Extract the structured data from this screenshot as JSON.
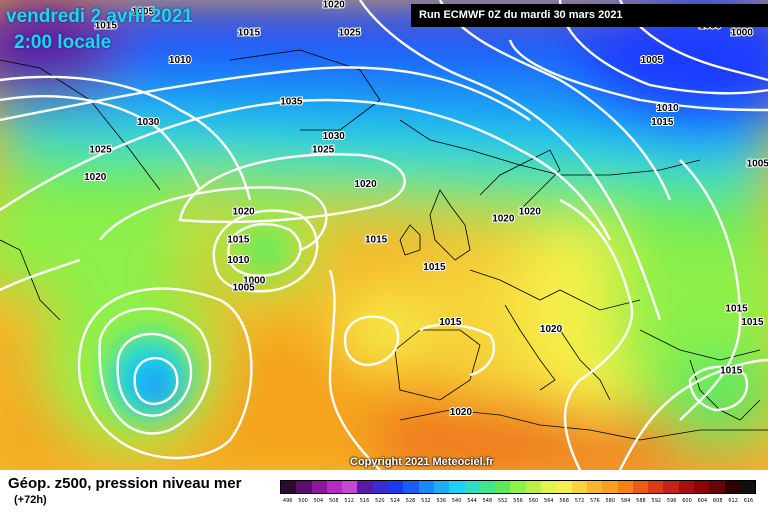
{
  "header": {
    "date": "vendredi 2 avril 2021",
    "local_time": "2:00 locale",
    "run": "Run ECMWF 0Z du mardi 30 mars 2021"
  },
  "copyright": "Copyright 2021 Meteociel.fr",
  "footer": {
    "title": "Géop. z500, pression niveau mer",
    "lead_time": "(+72h)"
  },
  "colors": {
    "deep_low": "#3a0ca3",
    "blue": "#1e3cff",
    "cyan": "#19d3f0",
    "green": "#5ee85e",
    "yellow": "#f6f04a",
    "orange": "#f5a31a",
    "isobar": "#ffffff",
    "coastline": "#000000"
  },
  "scale": {
    "labels": [
      "496",
      "500",
      "504",
      "508",
      "512",
      "516",
      "520",
      "524",
      "528",
      "532",
      "536",
      "540",
      "544",
      "548",
      "552",
      "556",
      "560",
      "564",
      "568",
      "572",
      "576",
      "580",
      "584",
      "588",
      "592",
      "596",
      "600",
      "604",
      "608",
      "612",
      "616"
    ],
    "colors": [
      "#2a0a2e",
      "#5a0f6a",
      "#8a1a9a",
      "#b52ac0",
      "#c04ad0",
      "#5a1aa8",
      "#3a2ad8",
      "#1a3af0",
      "#1a5cf6",
      "#1a88f6",
      "#1ab0f0",
      "#19d3f0",
      "#2ae0c0",
      "#3ae890",
      "#5ee85e",
      "#8ef04a",
      "#b8f048",
      "#e0f44a",
      "#f6f04a",
      "#f6d43a",
      "#f5b82a",
      "#f5a31a",
      "#f4821a",
      "#ee5a1a",
      "#e0381a",
      "#c8201a",
      "#a81010",
      "#880808",
      "#680404",
      "#300000",
      "#101010"
    ]
  },
  "pressure_labels": [
    {
      "text": "1000",
      "lon": -48,
      "lat": 69
    },
    {
      "text": "1005",
      "lon": -44,
      "lat": 66
    },
    {
      "text": "1015",
      "lon": -51,
      "lat": 64
    },
    {
      "text": "1010",
      "lon": -37,
      "lat": 59
    },
    {
      "text": "1015",
      "lon": -24,
      "lat": 63
    },
    {
      "text": "1020",
      "lon": -6,
      "lat": 71
    },
    {
      "text": "1020",
      "lon": -8,
      "lat": 67
    },
    {
      "text": "1025",
      "lon": -5,
      "lat": 63
    },
    {
      "text": "1035",
      "lon": -16,
      "lat": 53
    },
    {
      "text": "1030",
      "lon": -8,
      "lat": 48
    },
    {
      "text": "1025",
      "lon": -10,
      "lat": 46
    },
    {
      "text": "1030",
      "lon": -43,
      "lat": 50
    },
    {
      "text": "1025",
      "lon": -52,
      "lat": 46
    },
    {
      "text": "1020",
      "lon": -53,
      "lat": 42
    },
    {
      "text": "1020",
      "lon": -25,
      "lat": 37
    },
    {
      "text": "1015",
      "lon": -26,
      "lat": 33
    },
    {
      "text": "1010",
      "lon": -26,
      "lat": 30
    },
    {
      "text": "1000",
      "lon": -23,
      "lat": 27
    },
    {
      "text": "1005",
      "lon": -25,
      "lat": 26
    },
    {
      "text": "1020",
      "lon": -2,
      "lat": 41
    },
    {
      "text": "1015",
      "lon": 0,
      "lat": 33
    },
    {
      "text": "1015",
      "lon": 11,
      "lat": 29
    },
    {
      "text": "1015",
      "lon": 14,
      "lat": 21
    },
    {
      "text": "1020",
      "lon": 24,
      "lat": 36
    },
    {
      "text": "1020",
      "lon": 29,
      "lat": 37
    },
    {
      "text": "1020",
      "lon": 33,
      "lat": 20
    },
    {
      "text": "1020",
      "lon": 16,
      "lat": 8
    },
    {
      "text": "1000",
      "lon": 63,
      "lat": 64
    },
    {
      "text": "1000",
      "lon": 69,
      "lat": 63
    },
    {
      "text": "1000",
      "lon": 78,
      "lat": 60
    },
    {
      "text": "1005",
      "lon": 52,
      "lat": 59
    },
    {
      "text": "1010",
      "lon": 55,
      "lat": 52
    },
    {
      "text": "1015",
      "lon": 54,
      "lat": 50
    },
    {
      "text": "1005",
      "lon": 72,
      "lat": 44
    },
    {
      "text": "1015",
      "lon": 68,
      "lat": 23
    },
    {
      "text": "1015",
      "lon": 71,
      "lat": 21
    },
    {
      "text": "1015",
      "lon": 67,
      "lat": 14
    }
  ]
}
